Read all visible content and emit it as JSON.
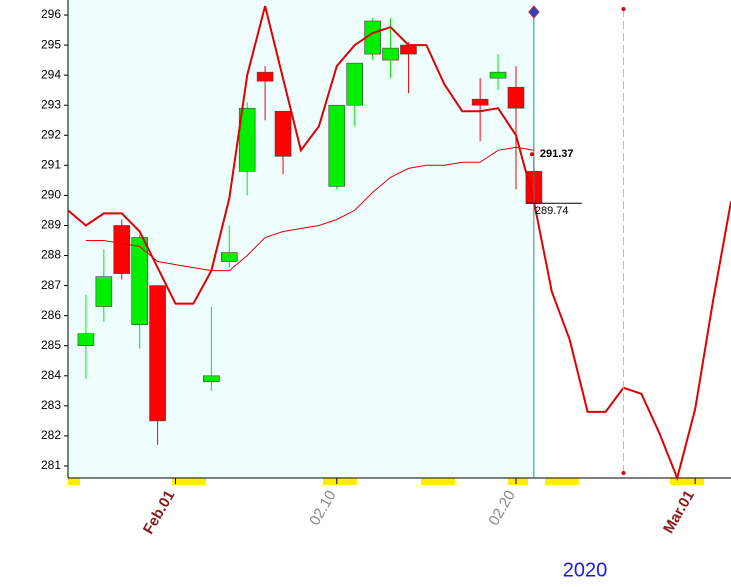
{
  "chart_data": {
    "type": "candlestick",
    "xlim": [
      -1,
      36
    ],
    "ylim": [
      280.6,
      296.5
    ],
    "yticks": [
      281,
      282,
      283,
      284,
      285,
      286,
      287,
      288,
      289,
      290,
      291,
      292,
      293,
      294,
      295,
      296
    ],
    "xticks": [
      {
        "value": 5,
        "label": "Feb.01"
      },
      {
        "value": 14,
        "label": "02.10"
      },
      {
        "value": 24,
        "label": "02.20"
      },
      {
        "value": 34,
        "label": "Mar.01"
      }
    ],
    "year_label": "2020",
    "up_color": "#00ee00",
    "down_color": "#ff0000",
    "candles": {
      "x": [
        0,
        1,
        2,
        3,
        4,
        7,
        8,
        9,
        10,
        11,
        14,
        15,
        16,
        17,
        18,
        22,
        23,
        24,
        25
      ],
      "open": [
        285.0,
        286.3,
        289.0,
        285.7,
        287.0,
        283.8,
        287.8,
        290.8,
        294.1,
        292.8,
        290.3,
        293.0,
        294.7,
        294.5,
        295.0,
        293.2,
        293.9,
        293.6,
        290.8
      ],
      "high": [
        286.7,
        288.2,
        289.2,
        288.7,
        287.0,
        286.3,
        289.0,
        293.1,
        294.3,
        292.8,
        293.0,
        294.4,
        295.9,
        295.9,
        295.1,
        293.9,
        294.7,
        294.3,
        291.2
      ],
      "low": [
        283.9,
        285.8,
        287.2,
        284.9,
        281.7,
        283.5,
        287.6,
        290.0,
        292.5,
        290.7,
        290.2,
        292.3,
        294.5,
        293.9,
        293.4,
        291.8,
        293.5,
        290.2,
        289.74
      ],
      "close": [
        285.4,
        287.3,
        287.4,
        288.6,
        282.5,
        284.0,
        288.1,
        292.9,
        293.8,
        291.3,
        293.0,
        294.4,
        295.8,
        294.9,
        294.7,
        293.0,
        294.1,
        292.9,
        289.74
      ]
    },
    "series": [
      {
        "color": "#e00000",
        "width": 2,
        "x": [
          -1,
          0,
          1,
          2,
          3,
          4,
          5,
          6,
          7,
          8,
          9,
          10,
          11,
          12,
          13,
          14,
          15,
          16,
          17,
          18,
          19,
          20,
          21,
          22,
          23,
          24,
          25,
          26,
          27,
          28,
          29,
          30,
          31,
          32,
          33,
          34,
          35,
          36
        ],
        "values": [
          289.5,
          289.0,
          289.4,
          289.4,
          288.8,
          287.6,
          286.4,
          286.4,
          287.5,
          289.9,
          294.0,
          296.3,
          293.9,
          291.5,
          292.3,
          294.3,
          295.0,
          295.4,
          295.6,
          295.0,
          295.0,
          293.7,
          292.8,
          292.8,
          292.9,
          292.0,
          289.8,
          286.8,
          285.2,
          282.8,
          282.8,
          283.6,
          283.4,
          282.1,
          280.6,
          282.9,
          286.5,
          289.8
        ]
      },
      {
        "color": "#e00000",
        "width": 1,
        "x": [
          0,
          1,
          2,
          3,
          4,
          5,
          6,
          7,
          8,
          9,
          10,
          11,
          12,
          13,
          14,
          15,
          16,
          17,
          18,
          19,
          20,
          21,
          22,
          23,
          24,
          25
        ],
        "values": [
          288.5,
          288.5,
          288.4,
          288.3,
          287.8,
          287.7,
          287.6,
          287.5,
          287.5,
          288.0,
          288.6,
          288.8,
          288.9,
          289.0,
          289.2,
          289.5,
          290.1,
          290.6,
          290.9,
          291.0,
          291.0,
          291.1,
          291.1,
          291.5,
          291.6,
          291.5
        ]
      }
    ],
    "cursor_x": 25,
    "marker_x": 30,
    "price_labels": [
      291.37,
      289.74
    ]
  }
}
